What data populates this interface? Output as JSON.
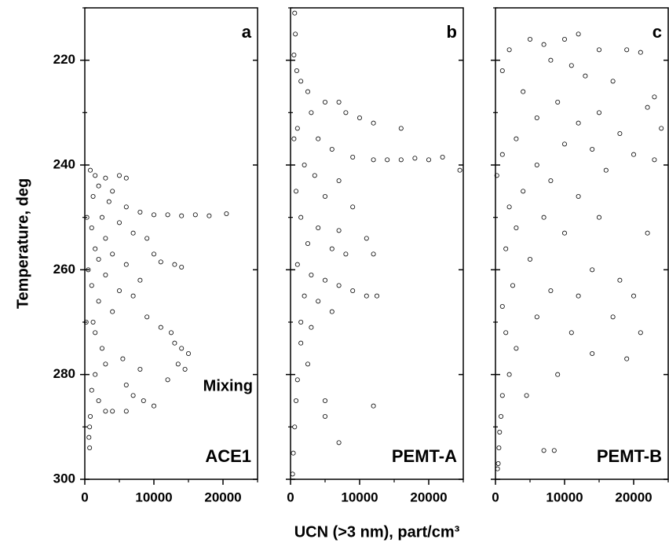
{
  "chart_data": [
    {
      "type": "scatter",
      "label": "a",
      "name": "ACE1",
      "annotation": "Mixing",
      "ylabel": "Temperature, deg",
      "xlim": [
        0,
        25000
      ],
      "ylim": [
        300,
        210
      ],
      "xticks": [
        0,
        10000,
        20000
      ],
      "xticks_minor": [
        5000,
        15000,
        25000
      ],
      "yticks": [
        220,
        240,
        260,
        280,
        300
      ],
      "yticks_minor": [
        210,
        230,
        250,
        270,
        290
      ],
      "ytick_labels": true,
      "color": "#000000",
      "x": [
        800,
        1500,
        3000,
        5000,
        6000,
        2000,
        4000,
        1200,
        3500,
        6000,
        8000,
        10000,
        12000,
        14000,
        16000,
        18000,
        20500,
        2500,
        5000,
        1000,
        7000,
        3000,
        9000,
        1500,
        4000,
        10000,
        2000,
        6000,
        11000,
        13000,
        14000,
        3000,
        8000,
        1000,
        5000,
        7000,
        2000,
        4000,
        9000,
        1200,
        11000,
        12500,
        13000,
        14000,
        15000,
        13500,
        14500,
        12000,
        1500,
        2500,
        5500,
        3000,
        8000,
        6000,
        7000,
        8500,
        10000,
        4000,
        6000,
        3000,
        1000,
        800,
        700,
        600,
        700,
        2000,
        500,
        300,
        200,
        1500
      ],
      "y": [
        241,
        242,
        242.5,
        242,
        242.5,
        244,
        245,
        246,
        247,
        248,
        249,
        249.5,
        249.5,
        249.7,
        249.5,
        249.7,
        249.3,
        250,
        251,
        252,
        253,
        254,
        254,
        256,
        257,
        257,
        258,
        259,
        258.5,
        259,
        259.5,
        261,
        262,
        263,
        264,
        265,
        266,
        268,
        269,
        270,
        271,
        272,
        274,
        275,
        276,
        278,
        279,
        281,
        272,
        275,
        277,
        278,
        279,
        282,
        284,
        285,
        286,
        287,
        287,
        287,
        283,
        288,
        290,
        292,
        294,
        285,
        260,
        250,
        270,
        280
      ]
    },
    {
      "type": "scatter",
      "label": "b",
      "name": "PEMT-A",
      "xlabel": "UCN (>3 nm), part/cm³",
      "xlim": [
        0,
        25000
      ],
      "ylim": [
        300,
        210
      ],
      "xticks": [
        0,
        10000,
        20000
      ],
      "xticks_minor": [
        5000,
        15000,
        25000
      ],
      "yticks": [
        220,
        240,
        260,
        280,
        300
      ],
      "yticks_minor": [
        210,
        230,
        250,
        270,
        290
      ],
      "ytick_labels": false,
      "color": "#000000",
      "x": [
        600,
        700,
        500,
        900,
        1500,
        2500,
        5000,
        7000,
        3000,
        8000,
        10000,
        12000,
        16000,
        1000,
        4000,
        6000,
        9000,
        12000,
        14000,
        16000,
        18000,
        20000,
        22000,
        24500,
        2000,
        3500,
        7000,
        5000,
        9000,
        1500,
        4000,
        7000,
        11000,
        2500,
        6000,
        8000,
        12000,
        1000,
        3000,
        5000,
        7000,
        9000,
        11000,
        12500,
        2000,
        4000,
        6000,
        3000,
        1500,
        2500,
        1000,
        800,
        5000,
        5000,
        12000,
        7000,
        600,
        400,
        300,
        1500,
        800,
        500
      ],
      "y": [
        211,
        215,
        219,
        222,
        224,
        226,
        228,
        228,
        230,
        230,
        231,
        232,
        233,
        233,
        235,
        237,
        238.5,
        239,
        239,
        239,
        238.7,
        239,
        238.5,
        241,
        240,
        242,
        243,
        246,
        248,
        250,
        252,
        252.5,
        254,
        255,
        256,
        257,
        257,
        259,
        261,
        262,
        263,
        264,
        265,
        265,
        265,
        266,
        268,
        271,
        274,
        278,
        281,
        285,
        285,
        288,
        286,
        293,
        290,
        295,
        299,
        270,
        245,
        235
      ]
    },
    {
      "type": "scatter",
      "label": "c",
      "name": "PEMT-B",
      "xlim": [
        0,
        25000
      ],
      "ylim": [
        300,
        210
      ],
      "xticks": [
        0,
        10000,
        20000
      ],
      "xticks_minor": [
        5000,
        15000,
        25000
      ],
      "yticks": [
        220,
        240,
        260,
        280,
        300
      ],
      "yticks_minor": [
        210,
        230,
        250,
        270,
        290
      ],
      "ytick_labels": false,
      "color": "#000000",
      "x": [
        5000,
        7000,
        10000,
        12000,
        15000,
        19000,
        21000,
        2000,
        8000,
        11000,
        1000,
        13000,
        17000,
        23000,
        4000,
        9000,
        15000,
        22000,
        6000,
        12000,
        18000,
        24000,
        3000,
        10000,
        14000,
        20000,
        23000,
        1000,
        6000,
        16000,
        8000,
        4000,
        12000,
        2000,
        7000,
        15000,
        3000,
        10000,
        22000,
        1500,
        5000,
        14000,
        18000,
        2500,
        8000,
        12000,
        20000,
        1000,
        6000,
        17000,
        11000,
        1500,
        21000,
        3000,
        14000,
        19000,
        2000,
        9000,
        1000,
        4500,
        800,
        600,
        500,
        7000,
        8500,
        400,
        300,
        200
      ],
      "y": [
        216,
        217,
        216,
        215,
        218,
        218,
        218.5,
        218,
        220,
        221,
        222,
        223,
        224,
        227,
        226,
        228,
        230,
        229,
        231,
        232,
        234,
        233,
        235,
        236,
        237,
        238,
        239,
        238,
        240,
        241,
        243,
        245,
        246,
        248,
        250,
        250,
        252,
        253,
        253,
        256,
        258,
        260,
        262,
        263,
        264,
        265,
        265,
        267,
        269,
        269,
        272,
        272,
        272,
        275,
        276,
        277,
        280,
        280,
        284,
        284,
        288,
        291,
        294,
        294.5,
        294.5,
        297,
        298,
        242
      ]
    }
  ]
}
